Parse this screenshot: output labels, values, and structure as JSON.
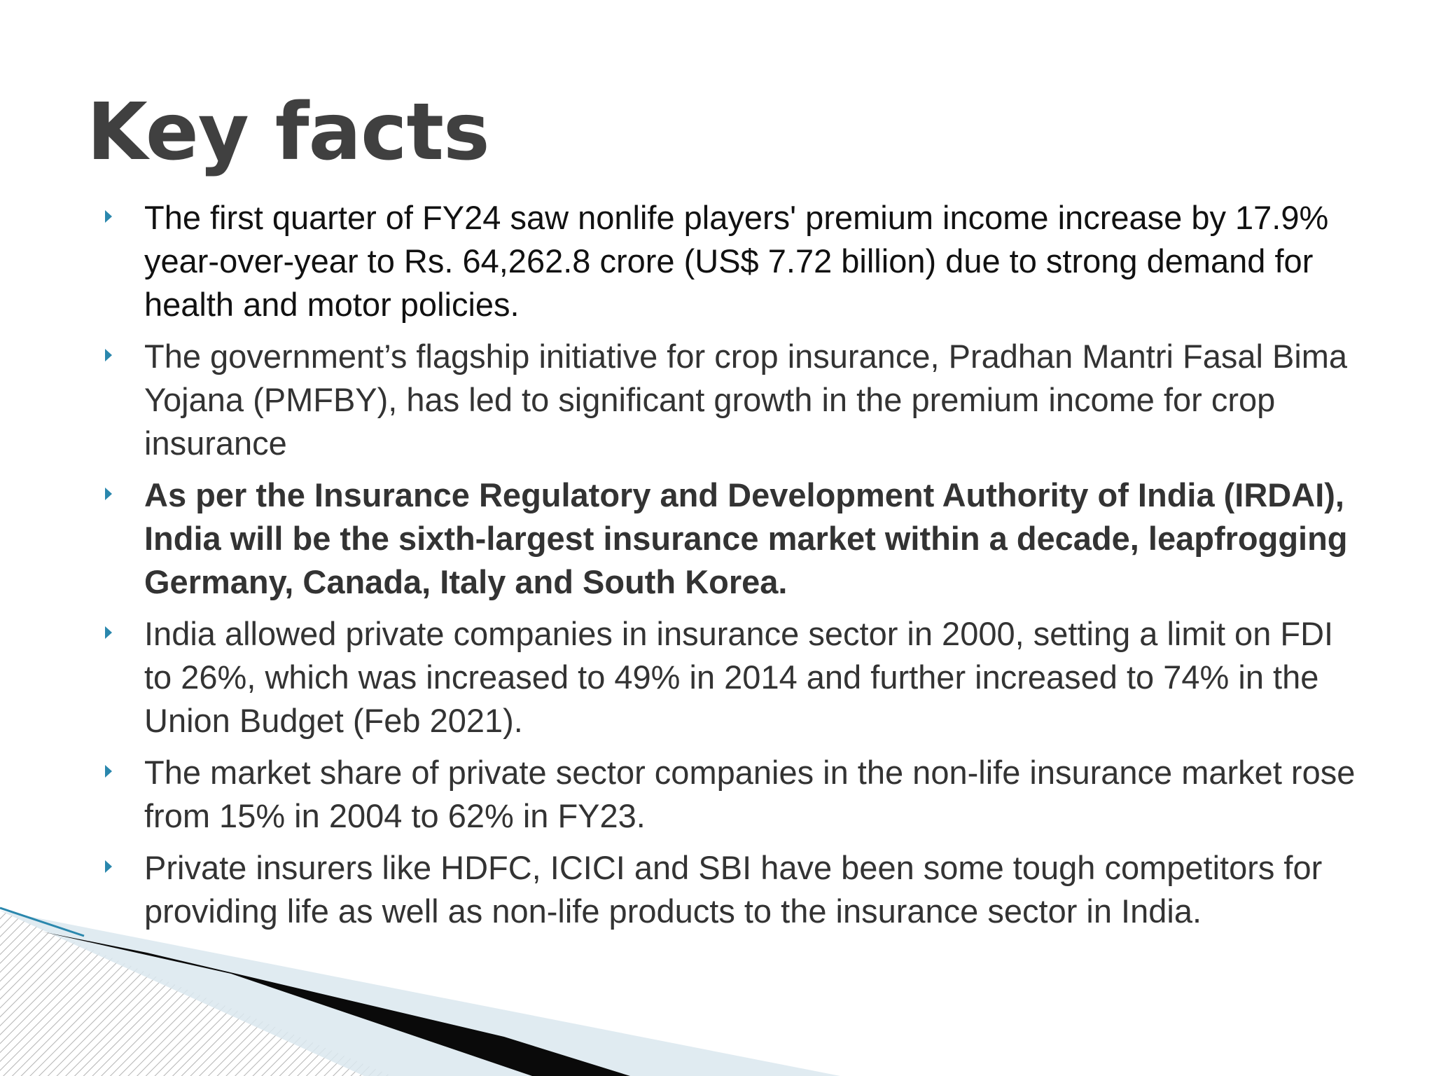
{
  "slide": {
    "title": "Key facts",
    "accent_color": "#2a87ad",
    "bullets": [
      "The first quarter of FY24 saw nonlife players' premium income increase by 17.9% year-over-year to Rs. 64,262.8 crore (US$ 7.72 billion) due to strong demand for health and motor policies.",
      "The government’s flagship initiative for crop insurance, Pradhan Mantri Fasal Bima Yojana (PMFBY), has led to significant growth in the premium income for crop insurance",
      "As per the Insurance Regulatory and Development Authority of India (IRDAI), India will be the sixth-largest insurance market within a decade, leapfrogging Germany, Canada, Italy and South Korea.",
      "India allowed private companies in insurance sector in 2000, setting a limit on FDI to 26%, which was increased to 49% in 2014 and further increased to 74% in the Union Budget (Feb 2021).",
      "The market share of private sector companies in the non-life insurance market rose from 15% in 2004 to 62% in FY23.",
      "Private insurers like HDFC, ICICI and SBI have been some tough competitors for providing life as well as non-life products to the insurance sector in India."
    ]
  }
}
